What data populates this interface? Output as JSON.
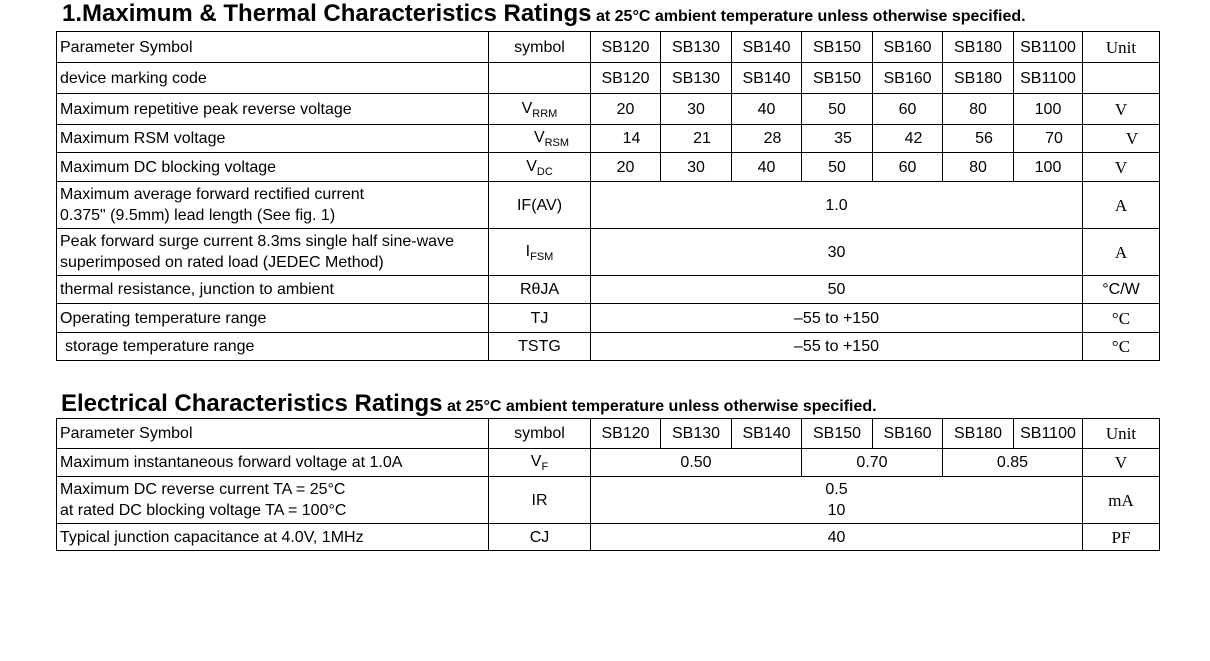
{
  "section1": {
    "title_main": "1.Maximum  & Thermal Characteristics Ratings",
    "title_sub": "at 25°C ambient temperature unless otherwise specified.",
    "header": {
      "param": "Parameter Symbol",
      "symbol": "symbol",
      "parts": [
        "SB120",
        "SB130",
        "SB140",
        "SB150",
        "SB160",
        "SB180",
        "SB1100"
      ],
      "unit": "Unit"
    },
    "marking": {
      "param": "device marking code",
      "codes": [
        "SB120",
        "SB130",
        "SB140",
        "SB150",
        "SB160",
        "SB180",
        "SB1100"
      ]
    },
    "vrrm": {
      "param": "Maximum repetitive peak reverse voltage",
      "sym": "V",
      "sub": "RRM",
      "values": [
        "20",
        "30",
        "40",
        "50",
        "60",
        "80",
        "100"
      ],
      "unit": "V"
    },
    "vrsm": {
      "param": "Maximum RSM voltage",
      "sym": "V",
      "sub": "RSM",
      "values": [
        "14",
        "21",
        "28",
        "35",
        "42",
        "56",
        "70"
      ],
      "unit": "V"
    },
    "vdc": {
      "param": "Maximum DC blocking voltage",
      "sym": "V",
      "sub": "DC",
      "values": [
        "20",
        "30",
        "40",
        "50",
        "60",
        "80",
        "100"
      ],
      "unit": "V"
    },
    "ifav": {
      "param_line1": "Maximum average forward rectified current",
      "param_line2": "0.375\" (9.5mm) lead length (See fig. 1)",
      "sym": "IF(AV)",
      "value": "1.0",
      "unit": "A"
    },
    "ifsm": {
      "param_line1": "Peak forward surge current 8.3ms single half sine-wave",
      "param_line2": "superimposed on rated load (JEDEC Method)",
      "sym": "I",
      "sub": "FSM",
      "value": "30",
      "unit": "A"
    },
    "rja": {
      "param": "thermal resistance, junction to ambient",
      "sym": "RθJA",
      "value": "50",
      "unit": "°C/W"
    },
    "tj": {
      "param": "Operating temperature range",
      "sym": "TJ",
      "value": "–55 to +150",
      "unit": "°C"
    },
    "tstg": {
      "param": "storage temperature range",
      "sym": "TSTG",
      "value": "–55 to +150",
      "unit": "°C"
    }
  },
  "section2": {
    "title_main": "Electrical Characteristics Ratings",
    "title_sub": "at 25°C ambient temperature unless otherwise specified.",
    "header": {
      "param": "Parameter Symbol",
      "symbol": "symbol",
      "parts": [
        "SB120",
        "SB130",
        "SB140",
        "SB150",
        "SB160",
        "SB180",
        "SB1100"
      ],
      "unit": "Unit"
    },
    "vf": {
      "param": "Maximum instantaneous forward voltage at 1.0A",
      "sym": "V",
      "sub": "F",
      "values": [
        "0.50",
        "0.70",
        "0.85"
      ],
      "unit": "V"
    },
    "ir": {
      "param_line1": "Maximum DC reverse current TA = 25°C",
      "param_line2": "at rated DC blocking voltage TA = 100°C",
      "sym": "IR",
      "value1": "0.5",
      "value2": "10",
      "unit": "mA"
    },
    "cj": {
      "param": "Typical junction capacitance at 4.0V, 1MHz",
      "sym": "CJ",
      "value": "40",
      "unit": "PF"
    }
  }
}
